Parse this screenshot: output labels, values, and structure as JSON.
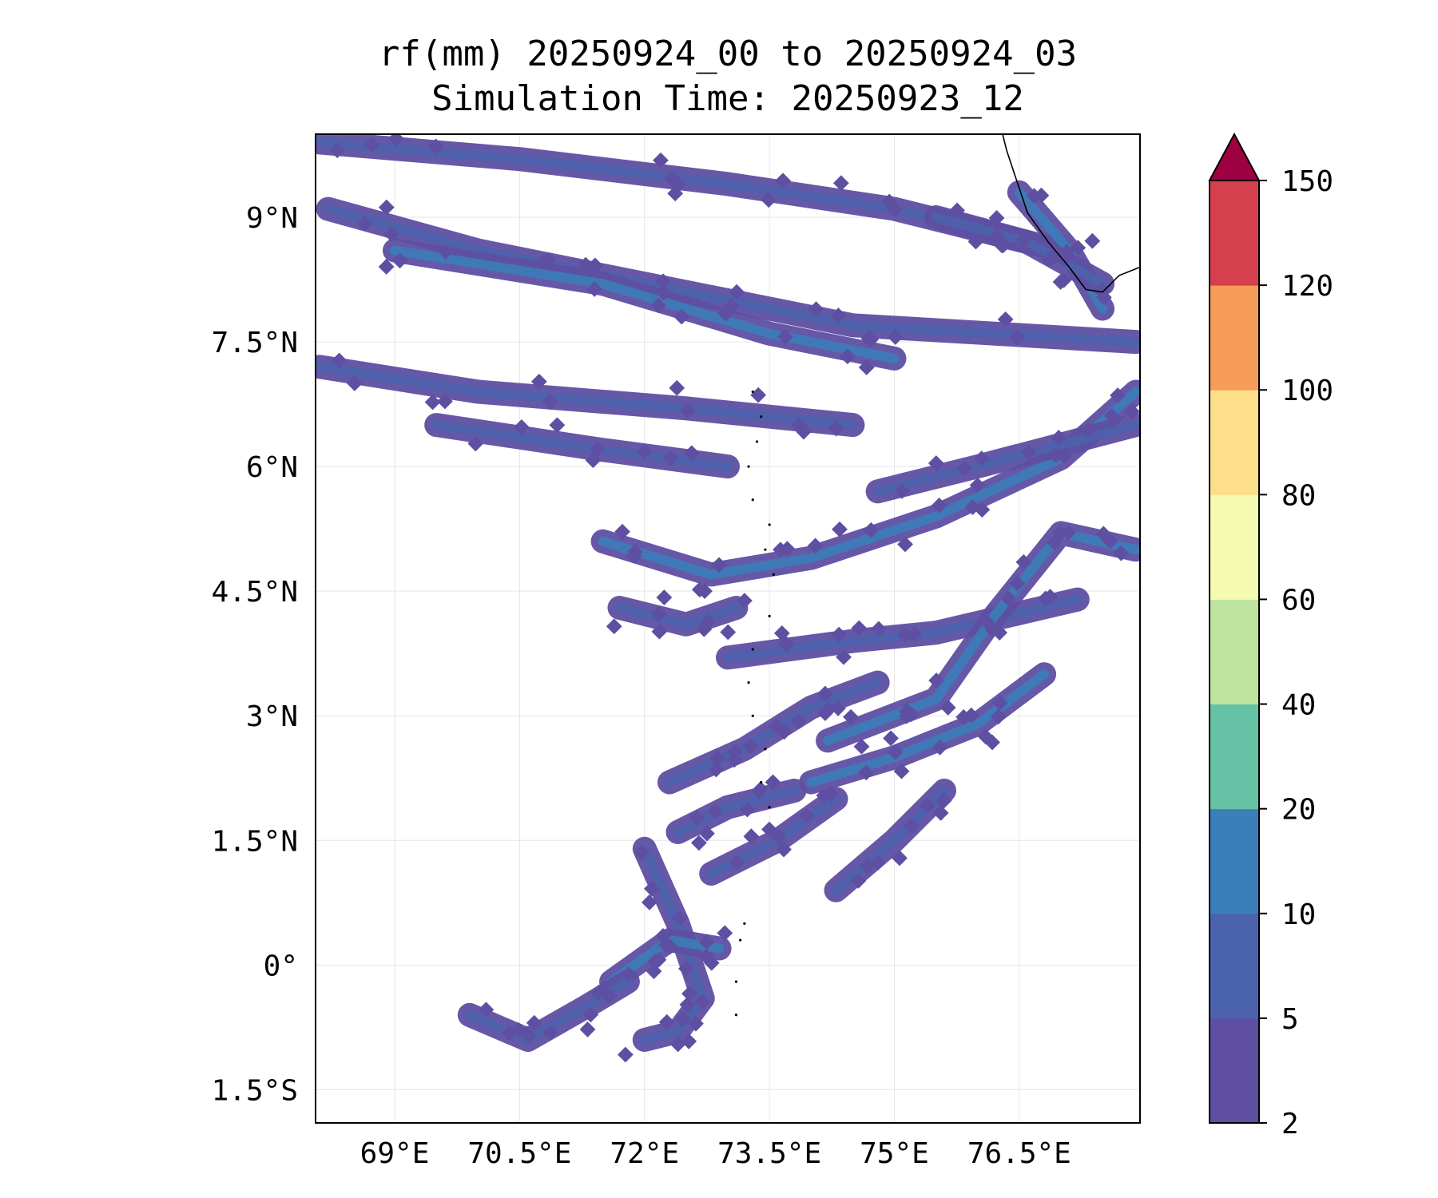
{
  "chart_data": {
    "type": "heatmap",
    "title_line1": "rf(mm) 20250924_00 to 20250924_03",
    "title_line2": "Simulation Time: 20250923_12",
    "x_axis": {
      "range": [
        68.05,
        77.95
      ],
      "ticks": [
        69,
        70.5,
        72,
        73.5,
        75,
        76.5
      ],
      "tick_labels": [
        "69°E",
        "70.5°E",
        "72°E",
        "73.5°E",
        "75°E",
        "76.5°E"
      ]
    },
    "y_axis": {
      "range": [
        -1.9,
        10.0
      ],
      "ticks": [
        -1.5,
        0,
        1.5,
        3,
        4.5,
        6,
        7.5,
        9
      ],
      "tick_labels": [
        "1.5°S",
        "0°",
        "1.5°N",
        "3°N",
        "4.5°N",
        "6°N",
        "7.5°N",
        "9°N"
      ]
    },
    "grid": true,
    "colorbar": {
      "levels": [
        2,
        5,
        10,
        20,
        40,
        60,
        80,
        100,
        120,
        150
      ],
      "level_labels": [
        "2",
        "5",
        "10",
        "20",
        "40",
        "60",
        "80",
        "100",
        "120",
        "150"
      ],
      "colors": [
        "#5e4fa2",
        "#4b62ad",
        "#3a7fba",
        "#66c2a5",
        "#bde39e",
        "#f4fab0",
        "#fddf8b",
        "#f89c59",
        "#d6404e",
        "#9e0142"
      ],
      "extend": "max"
    },
    "rain_bands": [
      {
        "coords": [
          [
            68.1,
            9.9
          ],
          [
            70.5,
            9.7
          ],
          [
            73.0,
            9.4
          ],
          [
            75.0,
            9.1
          ],
          [
            77.0,
            8.6
          ]
        ],
        "level": 5
      },
      {
        "coords": [
          [
            68.2,
            9.1
          ],
          [
            70.0,
            8.6
          ],
          [
            72.5,
            8.1
          ],
          [
            74.5,
            7.7
          ],
          [
            77.9,
            7.5
          ]
        ],
        "level": 5
      },
      {
        "coords": [
          [
            69.0,
            8.6
          ],
          [
            71.5,
            8.2
          ],
          [
            73.5,
            7.6
          ],
          [
            75.0,
            7.3
          ]
        ],
        "level": 10
      },
      {
        "coords": [
          [
            68.1,
            7.2
          ],
          [
            70.0,
            6.9
          ],
          [
            72.5,
            6.7
          ],
          [
            74.5,
            6.5
          ]
        ],
        "level": 5
      },
      {
        "coords": [
          [
            69.5,
            6.5
          ],
          [
            71.5,
            6.2
          ],
          [
            73.0,
            6.0
          ]
        ],
        "level": 5
      },
      {
        "coords": [
          [
            71.5,
            5.1
          ],
          [
            72.8,
            4.7
          ],
          [
            74.0,
            4.9
          ],
          [
            75.5,
            5.4
          ],
          [
            77.0,
            6.1
          ],
          [
            77.9,
            6.9
          ]
        ],
        "level": 10
      },
      {
        "coords": [
          [
            74.8,
            5.7
          ],
          [
            76.0,
            6.0
          ],
          [
            77.9,
            6.5
          ]
        ],
        "level": 5
      },
      {
        "coords": [
          [
            73.0,
            3.7
          ],
          [
            74.5,
            3.9
          ],
          [
            75.5,
            4.0
          ],
          [
            77.2,
            4.4
          ]
        ],
        "level": 5
      },
      {
        "coords": [
          [
            74.2,
            2.7
          ],
          [
            75.5,
            3.2
          ],
          [
            76.2,
            4.2
          ],
          [
            77.0,
            5.2
          ],
          [
            77.9,
            5.0
          ]
        ],
        "level": 10
      },
      {
        "coords": [
          [
            74.0,
            2.2
          ],
          [
            75.0,
            2.5
          ],
          [
            76.0,
            2.9
          ],
          [
            76.8,
            3.5
          ]
        ],
        "level": 10
      },
      {
        "coords": [
          [
            72.3,
            2.2
          ],
          [
            73.2,
            2.6
          ],
          [
            74.0,
            3.1
          ],
          [
            74.8,
            3.4
          ]
        ],
        "level": 5
      },
      {
        "coords": [
          [
            72.4,
            1.6
          ],
          [
            73.0,
            1.9
          ],
          [
            73.8,
            2.1
          ]
        ],
        "level": 5
      },
      {
        "coords": [
          [
            72.8,
            1.1
          ],
          [
            73.6,
            1.5
          ],
          [
            74.3,
            2.0
          ]
        ],
        "level": 5
      },
      {
        "coords": [
          [
            74.3,
            0.9
          ],
          [
            75.0,
            1.5
          ],
          [
            75.6,
            2.1
          ]
        ],
        "level": 5
      },
      {
        "coords": [
          [
            72.0,
            1.4
          ],
          [
            72.4,
            0.5
          ],
          [
            72.7,
            -0.4
          ],
          [
            72.4,
            -0.8
          ],
          [
            72.0,
            -0.9
          ]
        ],
        "level": 5
      },
      {
        "coords": [
          [
            71.6,
            -0.2
          ],
          [
            72.3,
            0.3
          ],
          [
            72.9,
            0.2
          ]
        ],
        "level": 10
      },
      {
        "coords": [
          [
            69.9,
            -0.6
          ],
          [
            70.6,
            -0.9
          ],
          [
            71.3,
            -0.5
          ],
          [
            71.8,
            -0.2
          ]
        ],
        "level": 5
      },
      {
        "coords": [
          [
            71.7,
            4.3
          ],
          [
            72.5,
            4.1
          ],
          [
            73.1,
            4.3
          ]
        ],
        "level": 5
      },
      {
        "coords": [
          [
            76.5,
            9.3
          ],
          [
            77.1,
            8.6
          ],
          [
            77.5,
            7.9
          ]
        ],
        "level": 10
      },
      {
        "coords": [
          [
            75.5,
            9.0
          ],
          [
            76.6,
            8.7
          ],
          [
            77.5,
            8.2
          ]
        ],
        "level": 5
      }
    ],
    "coastline": [
      [
        76.3,
        10.0
      ],
      [
        76.35,
        9.8
      ],
      [
        76.45,
        9.5
      ],
      [
        76.6,
        9.05
      ],
      [
        76.85,
        8.7
      ],
      [
        77.1,
        8.4
      ],
      [
        77.3,
        8.13
      ],
      [
        77.5,
        8.1
      ],
      [
        77.7,
        8.3
      ],
      [
        77.95,
        8.4
      ]
    ],
    "islands": [
      [
        73.3,
        6.9
      ],
      [
        73.4,
        6.6
      ],
      [
        73.35,
        6.3
      ],
      [
        73.25,
        6.0
      ],
      [
        73.3,
        5.6
      ],
      [
        73.5,
        5.3
      ],
      [
        73.45,
        5.0
      ],
      [
        73.55,
        4.7
      ],
      [
        73.5,
        4.2
      ],
      [
        73.3,
        3.8
      ],
      [
        73.25,
        3.4
      ],
      [
        73.3,
        3.0
      ],
      [
        73.45,
        2.6
      ],
      [
        73.4,
        2.2
      ],
      [
        73.5,
        1.9
      ],
      [
        73.2,
        0.5
      ],
      [
        73.1,
        -0.2
      ],
      [
        73.1,
        -0.6
      ],
      [
        73.15,
        0.3
      ]
    ]
  }
}
